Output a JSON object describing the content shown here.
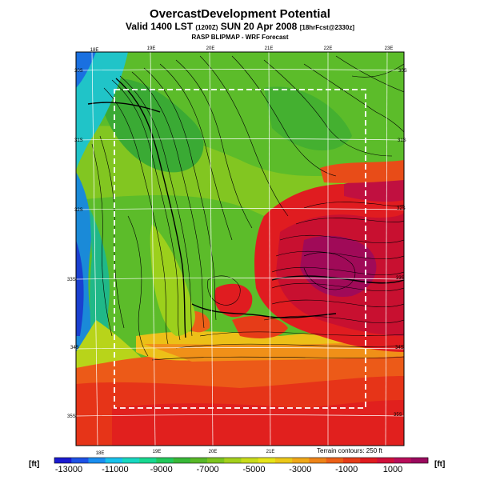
{
  "header": {
    "title": "OvercastDevelopment Potential",
    "subtitle_main": "Valid 1400 LST",
    "subtitle_small": "(1200Z)",
    "subtitle_date": "SUN 20 Apr 2008",
    "subtitle_forecast": "[18hrFcst@2330z]",
    "model_line": "RASP BLIPMAP - WRF Forecast"
  },
  "map": {
    "top_lon_labels": [
      "18E",
      "19E",
      "20E",
      "21E",
      "22E",
      "23E"
    ],
    "bottom_lon_labels": [
      "18E",
      "19E",
      "20E",
      "21E"
    ],
    "left_lat_labels": [
      "30S",
      "31S",
      "32S",
      "33S",
      "34S",
      "35S"
    ],
    "right_lat_labels": [
      "30S",
      "31S",
      "32S",
      "33S",
      "34S",
      "35S"
    ],
    "terrain_note": "Terrain contours: 250 ft"
  },
  "colorbar": {
    "unit_left": "[ft]",
    "unit_right": "[ft]",
    "labels": [
      "-13000",
      "-11000",
      "-9000",
      "-7000",
      "-5000",
      "-3000",
      "-1000",
      "1000"
    ],
    "colors": [
      "#1a1ad0",
      "#1e52e6",
      "#1a8ef0",
      "#18c2ec",
      "#18d8c0",
      "#18d890",
      "#22c85a",
      "#38b838",
      "#58b828",
      "#7cc41e",
      "#a4d01c",
      "#c8dc1a",
      "#e6e41a",
      "#ecc818",
      "#f0a818",
      "#ee8418",
      "#ec6018",
      "#e63c18",
      "#e01c20",
      "#d0103a",
      "#b80e5a",
      "#9a0a5e"
    ]
  },
  "domain_box_color": "#ffffff",
  "grid_color": "#ffffff"
}
